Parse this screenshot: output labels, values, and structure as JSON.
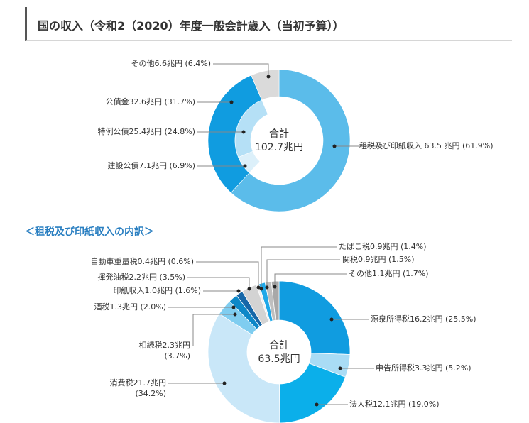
{
  "page": {
    "title": "国の収入（令和2（2020）年度一般会計歳入（当初予算））",
    "subheading": "＜租税及び印紙収入の内訳＞"
  },
  "chart_data": [
    {
      "type": "donut",
      "center_label": "合計",
      "center_value": "102.7兆円",
      "outer_ring": [
        {
          "name": "租税及び印紙収入",
          "value": 63.5,
          "pct": 61.9,
          "label": "租税及び印紙収入 63.5 兆円 (61.9%)",
          "color": "#5bbcea"
        },
        {
          "name": "公債金",
          "value": 32.6,
          "pct": 31.7,
          "label": "公債金32.6兆円 (31.7%)",
          "color": "#109ce0"
        },
        {
          "name": "その他",
          "value": 6.6,
          "pct": 6.4,
          "label": "その他6.6兆円 (6.4%)",
          "color": "#dadada"
        }
      ],
      "inner_ring": [
        {
          "name": "特例公債",
          "value": 25.4,
          "pct": 24.8,
          "label": "特例公債25.4兆円 (24.8%)",
          "color": "#b5e0f6"
        },
        {
          "name": "建設公債",
          "value": 7.1,
          "pct": 6.9,
          "label": "建設公債7.1兆円 (6.9%)",
          "color": "#dcf0fa"
        }
      ]
    },
    {
      "type": "donut",
      "center_label": "合計",
      "center_value": "63.5兆円",
      "slices": [
        {
          "name": "源泉所得税",
          "value": 16.2,
          "pct": 25.5,
          "label": "源泉所得税16.2兆円 (25.5%)",
          "color": "#109ce0"
        },
        {
          "name": "申告所得税",
          "value": 3.3,
          "pct": 5.2,
          "label": "申告所得税3.3兆円 (5.2%)",
          "color": "#a9dcf5"
        },
        {
          "name": "法人税",
          "value": 12.1,
          "pct": 19.0,
          "label": "法人税12.1兆円 (19.0%)",
          "color": "#0bafea"
        },
        {
          "name": "消費税",
          "value": 21.7,
          "pct": 34.2,
          "label": "消費税21.7兆円",
          "label2": "(34.2%)",
          "color": "#c9e7f8"
        },
        {
          "name": "相続税",
          "value": 2.3,
          "pct": 3.7,
          "label": "相続税2.3兆円",
          "label2": "(3.7%)",
          "color": "#7fcdf0"
        },
        {
          "name": "酒税",
          "value": 1.3,
          "pct": 2.0,
          "label": "酒税1.3兆円 (2.0%)",
          "color": "#0d88c8"
        },
        {
          "name": "印紙収入",
          "value": 1.0,
          "pct": 1.6,
          "label": "印紙収入1.0兆円 (1.6%)",
          "color": "#1667a8"
        },
        {
          "name": "揮発油税",
          "value": 2.2,
          "pct": 3.5,
          "label": "揮発油税2.2兆円 (3.5%)",
          "color": "#d3d3d3"
        },
        {
          "name": "自動車重量税",
          "value": 0.4,
          "pct": 0.6,
          "label": "自動車重量税0.4兆円 (0.6%)",
          "color": "#f0f0f0"
        },
        {
          "name": "たばこ税",
          "value": 0.9,
          "pct": 1.4,
          "label": "たばこ税0.9兆円 (1.4%)",
          "color": "#1fa8e8"
        },
        {
          "name": "関税",
          "value": 0.9,
          "pct": 1.5,
          "label": "関税0.9兆円 (1.5%)",
          "color": "#bfbfbf"
        },
        {
          "name": "その他",
          "value": 1.1,
          "pct": 1.7,
          "label": "その他1.1兆円 (1.7%)",
          "color": "#a8a8a8"
        }
      ]
    }
  ]
}
